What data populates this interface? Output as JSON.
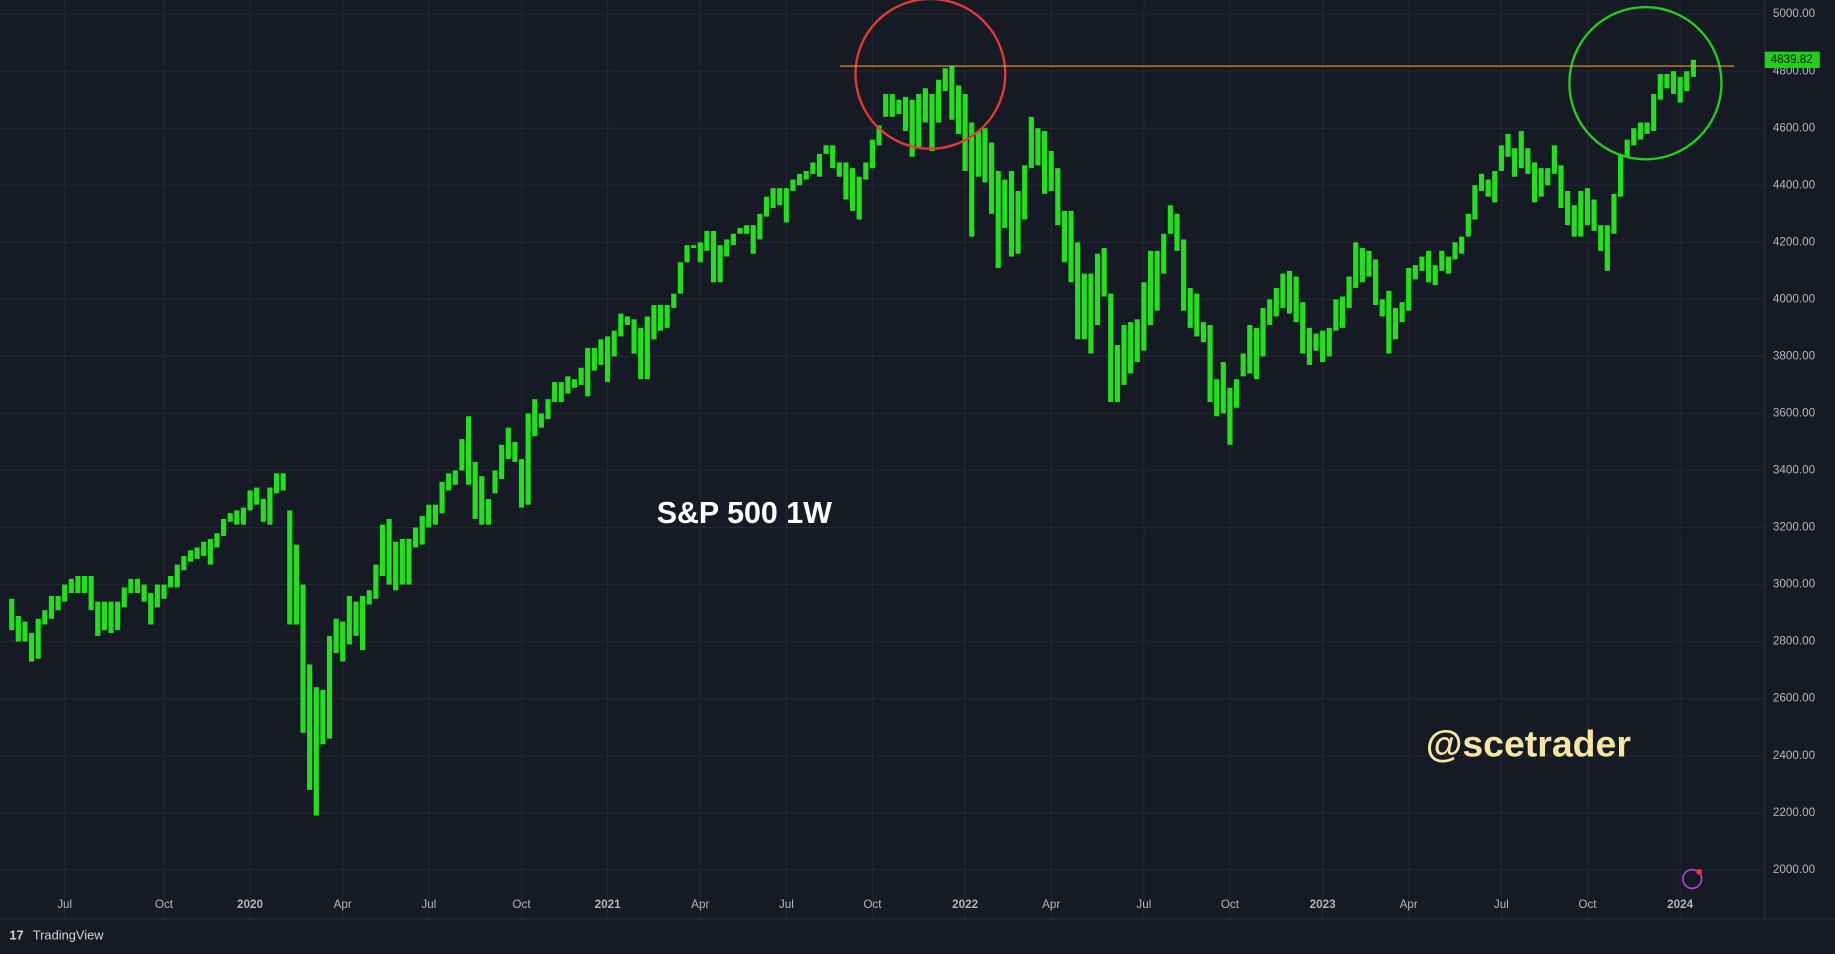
{
  "chart_data": {
    "type": "bar-range",
    "title": "S&P 500 1W",
    "watermark": "@scetrader",
    "brand": "TradingView",
    "color": "#22e01c",
    "grid": true,
    "last_price": 4839.82,
    "hline": 4818,
    "ylim": [
      1900,
      5050
    ],
    "yticks": [
      {
        "value": 2000,
        "label": "2000.00"
      },
      {
        "value": 2200,
        "label": "2200.00"
      },
      {
        "value": 2400,
        "label": "2400.00"
      },
      {
        "value": 2600,
        "label": "2600.00"
      },
      {
        "value": 2800,
        "label": "2800.00"
      },
      {
        "value": 3000,
        "label": "3000.00"
      },
      {
        "value": 3200,
        "label": "3200.00"
      },
      {
        "value": 3400,
        "label": "3400.00"
      },
      {
        "value": 3600,
        "label": "3600.00"
      },
      {
        "value": 3800,
        "label": "3800.00"
      },
      {
        "value": 4000,
        "label": "4000.00"
      },
      {
        "value": 4200,
        "label": "4200.00"
      },
      {
        "value": 4400,
        "label": "4400.00"
      },
      {
        "value": 4600,
        "label": "4600.00"
      },
      {
        "value": 4800,
        "label": "4800.00"
      },
      {
        "value": 5000,
        "label": "5000.00"
      }
    ],
    "categories": [
      null,
      null,
      null,
      null,
      null,
      null,
      null,
      null,
      "Jul",
      null,
      null,
      null,
      null,
      null,
      null,
      null,
      null,
      null,
      null,
      null,
      null,
      null,
      null,
      "Oct",
      null,
      null,
      null,
      null,
      null,
      null,
      null,
      null,
      null,
      null,
      null,
      null,
      "2020",
      null,
      null,
      null,
      null,
      null,
      null,
      null,
      null,
      null,
      null,
      null,
      null,
      null,
      "Apr",
      null,
      null,
      null,
      null,
      null,
      null,
      null,
      null,
      null,
      null,
      null,
      null,
      "Jul",
      null,
      null,
      null,
      null,
      null,
      null,
      null,
      null,
      null,
      null,
      null,
      null,
      null,
      "Oct",
      null,
      null,
      null,
      null,
      null,
      null,
      null,
      null,
      null,
      null,
      null,
      null,
      "2021",
      null,
      null,
      null,
      null,
      null,
      null,
      null,
      null,
      null,
      null,
      null,
      null,
      null,
      "Apr",
      null,
      null,
      null,
      null,
      null,
      null,
      null,
      null,
      null,
      null,
      null,
      null,
      "Jul",
      null,
      null,
      null,
      null,
      null,
      null,
      null,
      null,
      null,
      null,
      null,
      null,
      "Oct",
      null,
      null,
      null,
      null,
      null,
      null,
      null,
      null,
      null,
      null,
      null,
      null,
      null,
      "2022",
      null,
      null,
      null,
      null,
      null,
      null,
      null,
      null,
      null,
      null,
      null,
      null,
      "Apr",
      null,
      null,
      null,
      null,
      null,
      null,
      null,
      null,
      null,
      null,
      null,
      null,
      null,
      "Jul",
      null,
      null,
      null,
      null,
      null,
      null,
      null,
      null,
      null,
      null,
      null,
      null,
      "Oct",
      null,
      null,
      null,
      null,
      null,
      null,
      null,
      null,
      null,
      null,
      null,
      null,
      null,
      "2023",
      null,
      null,
      null,
      null,
      null,
      null,
      null,
      null,
      null,
      null,
      null,
      null,
      "Apr",
      null,
      null,
      null,
      null,
      null,
      null,
      null,
      null,
      null,
      null,
      null,
      null,
      null,
      "Jul",
      null,
      null,
      null,
      null,
      null,
      null,
      null,
      null,
      null,
      null,
      null,
      null,
      "Oct",
      null,
      null,
      null,
      null,
      null,
      null,
      null,
      null,
      null,
      null,
      null,
      null,
      null,
      "2024",
      null,
      null
    ],
    "values": [
      [
        2840,
        2950
      ],
      [
        2800,
        2890
      ],
      [
        2800,
        2870
      ],
      [
        2730,
        2830
      ],
      [
        2740,
        2880
      ],
      [
        2860,
        2910
      ],
      [
        2880,
        2960
      ],
      [
        2910,
        2960
      ],
      [
        2940,
        3000
      ],
      [
        2970,
        3020
      ],
      [
        2970,
        3030
      ],
      [
        2970,
        3030
      ],
      [
        2910,
        3030
      ],
      [
        2820,
        2940
      ],
      [
        2840,
        2940
      ],
      [
        2830,
        2940
      ],
      [
        2840,
        2940
      ],
      [
        2920,
        2990
      ],
      [
        2970,
        3020
      ],
      [
        2970,
        3020
      ],
      [
        2940,
        3000
      ],
      [
        2860,
        2970
      ],
      [
        2920,
        3000
      ],
      [
        2950,
        3000
      ],
      [
        2990,
        3030
      ],
      [
        2990,
        3070
      ],
      [
        3050,
        3100
      ],
      [
        3080,
        3120
      ],
      [
        3090,
        3130
      ],
      [
        3100,
        3150
      ],
      [
        3070,
        3160
      ],
      [
        3130,
        3180
      ],
      [
        3170,
        3230
      ],
      [
        3220,
        3250
      ],
      [
        3210,
        3260
      ],
      [
        3210,
        3270
      ],
      [
        3260,
        3330
      ],
      [
        3280,
        3340
      ],
      [
        3220,
        3300
      ],
      [
        3210,
        3340
      ],
      [
        3320,
        3390
      ],
      [
        3330,
        3390
      ],
      [
        2860,
        3260
      ],
      [
        2860,
        3140
      ],
      [
        2480,
        3000
      ],
      [
        2280,
        2720
      ],
      [
        2190,
        2640
      ],
      [
        2440,
        2630
      ],
      [
        2460,
        2820
      ],
      [
        2760,
        2880
      ],
      [
        2730,
        2870
      ],
      [
        2790,
        2960
      ],
      [
        2820,
        2940
      ],
      [
        2770,
        2960
      ],
      [
        2930,
        2980
      ],
      [
        2950,
        3070
      ],
      [
        3030,
        3210
      ],
      [
        3000,
        3230
      ],
      [
        2980,
        3150
      ],
      [
        3000,
        3160
      ],
      [
        3000,
        3160
      ],
      [
        3130,
        3200
      ],
      [
        3140,
        3240
      ],
      [
        3200,
        3280
      ],
      [
        3210,
        3280
      ],
      [
        3250,
        3360
      ],
      [
        3330,
        3390
      ],
      [
        3350,
        3400
      ],
      [
        3400,
        3510
      ],
      [
        3350,
        3590
      ],
      [
        3230,
        3430
      ],
      [
        3210,
        3380
      ],
      [
        3210,
        3300
      ],
      [
        3320,
        3400
      ],
      [
        3370,
        3490
      ],
      [
        3440,
        3550
      ],
      [
        3430,
        3500
      ],
      [
        3270,
        3440
      ],
      [
        3280,
        3600
      ],
      [
        3520,
        3650
      ],
      [
        3550,
        3600
      ],
      [
        3580,
        3650
      ],
      [
        3640,
        3710
      ],
      [
        3640,
        3710
      ],
      [
        3670,
        3730
      ],
      [
        3690,
        3720
      ],
      [
        3700,
        3760
      ],
      [
        3660,
        3830
      ],
      [
        3750,
        3830
      ],
      [
        3770,
        3860
      ],
      [
        3710,
        3870
      ],
      [
        3800,
        3890
      ],
      [
        3870,
        3950
      ],
      [
        3910,
        3940
      ],
      [
        3810,
        3930
      ],
      [
        3720,
        3900
      ],
      [
        3720,
        3940
      ],
      [
        3860,
        3980
      ],
      [
        3890,
        3980
      ],
      [
        3900,
        3980
      ],
      [
        3970,
        4020
      ],
      [
        4020,
        4130
      ],
      [
        4130,
        4190
      ],
      [
        4180,
        4190
      ],
      [
        4130,
        4200
      ],
      [
        4170,
        4240
      ],
      [
        4060,
        4240
      ],
      [
        4060,
        4190
      ],
      [
        4150,
        4210
      ],
      [
        4190,
        4230
      ],
      [
        4230,
        4250
      ],
      [
        4230,
        4260
      ],
      [
        4160,
        4260
      ],
      [
        4210,
        4300
      ],
      [
        4290,
        4360
      ],
      [
        4320,
        4390
      ],
      [
        4330,
        4390
      ],
      [
        4270,
        4390
      ],
      [
        4380,
        4420
      ],
      [
        4400,
        4440
      ],
      [
        4420,
        4450
      ],
      [
        4440,
        4480
      ],
      [
        4430,
        4510
      ],
      [
        4510,
        4540
      ],
      [
        4460,
        4540
      ],
      [
        4430,
        4480
      ],
      [
        4350,
        4480
      ],
      [
        4310,
        4460
      ],
      [
        4280,
        4430
      ],
      [
        4420,
        4480
      ],
      [
        4460,
        4560
      ],
      [
        4540,
        4610
      ],
      [
        4640,
        4720
      ],
      [
        4640,
        4720
      ],
      [
        4650,
        4700
      ],
      [
        4590,
        4710
      ],
      [
        4500,
        4700
      ],
      [
        4530,
        4720
      ],
      [
        4620,
        4740
      ],
      [
        4520,
        4720
      ],
      [
        4620,
        4770
      ],
      [
        4730,
        4810
      ],
      [
        4630,
        4820
      ],
      [
        4580,
        4750
      ],
      [
        4450,
        4720
      ],
      [
        4220,
        4620
      ],
      [
        4430,
        4590
      ],
      [
        4410,
        4600
      ],
      [
        4300,
        4550
      ],
      [
        4110,
        4450
      ],
      [
        4250,
        4420
      ],
      [
        4150,
        4450
      ],
      [
        4160,
        4380
      ],
      [
        4280,
        4470
      ],
      [
        4460,
        4640
      ],
      [
        4470,
        4600
      ],
      [
        4370,
        4590
      ],
      [
        4380,
        4520
      ],
      [
        4260,
        4460
      ],
      [
        4130,
        4310
      ],
      [
        4060,
        4310
      ],
      [
        3860,
        4200
      ],
      [
        3860,
        4090
      ],
      [
        3810,
        4090
      ],
      [
        3910,
        4160
      ],
      [
        4010,
        4180
      ],
      [
        3640,
        4020
      ],
      [
        3640,
        3840
      ],
      [
        3700,
        3910
      ],
      [
        3740,
        3920
      ],
      [
        3780,
        3930
      ],
      [
        3820,
        4060
      ],
      [
        3910,
        4170
      ],
      [
        3960,
        4170
      ],
      [
        4090,
        4230
      ],
      [
        4230,
        4330
      ],
      [
        4170,
        4300
      ],
      [
        3960,
        4210
      ],
      [
        3900,
        4040
      ],
      [
        3870,
        4020
      ],
      [
        3850,
        3920
      ],
      [
        3640,
        3910
      ],
      [
        3590,
        3720
      ],
      [
        3600,
        3780
      ],
      [
        3490,
        3690
      ],
      [
        3620,
        3720
      ],
      [
        3730,
        3810
      ],
      [
        3740,
        3910
      ],
      [
        3720,
        3900
      ],
      [
        3800,
        3970
      ],
      [
        3910,
        4000
      ],
      [
        3940,
        4040
      ],
      [
        3970,
        4090
      ],
      [
        3950,
        4100
      ],
      [
        3920,
        4080
      ],
      [
        3810,
        3990
      ],
      [
        3770,
        3900
      ],
      [
        3820,
        3880
      ],
      [
        3780,
        3890
      ],
      [
        3800,
        3900
      ],
      [
        3890,
        4000
      ],
      [
        3900,
        4010
      ],
      [
        3970,
        4080
      ],
      [
        4040,
        4200
      ],
      [
        4060,
        4180
      ],
      [
        4080,
        4170
      ],
      [
        3980,
        4140
      ],
      [
        3940,
        4000
      ],
      [
        3810,
        4030
      ],
      [
        3860,
        3970
      ],
      [
        3920,
        3990
      ],
      [
        3960,
        4110
      ],
      [
        4070,
        4120
      ],
      [
        4100,
        4150
      ],
      [
        4060,
        4170
      ],
      [
        4050,
        4120
      ],
      [
        4100,
        4170
      ],
      [
        4090,
        4150
      ],
      [
        4140,
        4200
      ],
      [
        4160,
        4220
      ],
      [
        4220,
        4300
      ],
      [
        4280,
        4400
      ],
      [
        4380,
        4440
      ],
      [
        4360,
        4420
      ],
      [
        4340,
        4450
      ],
      [
        4450,
        4540
      ],
      [
        4500,
        4580
      ],
      [
        4430,
        4530
      ],
      [
        4460,
        4590
      ],
      [
        4440,
        4530
      ],
      [
        4340,
        4480
      ],
      [
        4360,
        4460
      ],
      [
        4400,
        4460
      ],
      [
        4440,
        4540
      ],
      [
        4320,
        4470
      ],
      [
        4260,
        4380
      ],
      [
        4220,
        4330
      ],
      [
        4220,
        4380
      ],
      [
        4260,
        4390
      ],
      [
        4240,
        4350
      ],
      [
        4170,
        4260
      ],
      [
        4100,
        4260
      ],
      [
        4230,
        4370
      ],
      [
        4360,
        4510
      ],
      [
        4500,
        4560
      ],
      [
        4540,
        4600
      ],
      [
        4560,
        4620
      ],
      [
        4580,
        4620
      ],
      [
        4590,
        4720
      ],
      [
        4700,
        4790
      ],
      [
        4740,
        4790
      ],
      [
        4720,
        4800
      ],
      [
        4690,
        4780
      ],
      [
        4730,
        4800
      ],
      [
        4780,
        4840
      ]
    ]
  }
}
